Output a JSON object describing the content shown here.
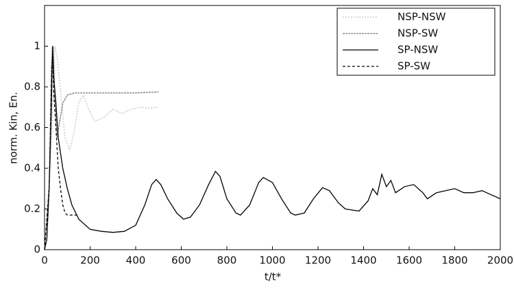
{
  "chart_data": {
    "type": "line",
    "x_label": "t/t*",
    "y_label": "norm. Kin, En.",
    "xlim": [
      0,
      2000
    ],
    "xticks": [
      0,
      200,
      400,
      600,
      800,
      1000,
      1200,
      1400,
      1600,
      1800,
      2000
    ],
    "ylim": [
      0,
      1.2
    ],
    "yticks": [
      0,
      0.2,
      0.4,
      0.6,
      0.8,
      1
    ],
    "legend": "upper right",
    "series": [
      {
        "name": "NSP-NSW",
        "color": "#c4c4c4",
        "dash": "2,2",
        "x": [
          0,
          30,
          45,
          55,
          70,
          90,
          110,
          130,
          150,
          170,
          190,
          220,
          260,
          300,
          340,
          380,
          420,
          460,
          500
        ],
        "values": [
          0,
          0.5,
          1.0,
          0.95,
          0.78,
          0.55,
          0.49,
          0.58,
          0.72,
          0.76,
          0.7,
          0.63,
          0.65,
          0.69,
          0.67,
          0.69,
          0.7,
          0.695,
          0.7
        ]
      },
      {
        "name": "NSP-SW",
        "color": "#777777",
        "dash": "3,1",
        "x": [
          0,
          20,
          30,
          38,
          45,
          55,
          65,
          80,
          100,
          130,
          200,
          300,
          400,
          500
        ],
        "values": [
          0,
          0.3,
          0.9,
          1.0,
          0.75,
          0.55,
          0.62,
          0.72,
          0.76,
          0.77,
          0.77,
          0.77,
          0.77,
          0.775
        ]
      },
      {
        "name": "SP-NSW",
        "color": "#000000",
        "dash": "none",
        "x": [
          0,
          10,
          20,
          30,
          35,
          40,
          50,
          60,
          80,
          100,
          120,
          150,
          200,
          250,
          300,
          350,
          400,
          440,
          470,
          490,
          510,
          540,
          580,
          610,
          640,
          680,
          720,
          750,
          770,
          800,
          840,
          860,
          900,
          940,
          960,
          1000,
          1040,
          1080,
          1100,
          1140,
          1180,
          1220,
          1250,
          1290,
          1320,
          1380,
          1420,
          1440,
          1460,
          1480,
          1500,
          1520,
          1540,
          1580,
          1620,
          1660,
          1680,
          1720,
          1760,
          1800,
          1840,
          1880,
          1920,
          1960,
          2000
        ],
        "values": [
          0,
          0.05,
          0.3,
          0.7,
          1.0,
          0.85,
          0.72,
          0.55,
          0.4,
          0.3,
          0.22,
          0.15,
          0.1,
          0.09,
          0.085,
          0.09,
          0.12,
          0.22,
          0.32,
          0.345,
          0.32,
          0.25,
          0.18,
          0.15,
          0.16,
          0.22,
          0.32,
          0.385,
          0.36,
          0.25,
          0.18,
          0.17,
          0.22,
          0.33,
          0.355,
          0.33,
          0.25,
          0.18,
          0.17,
          0.18,
          0.25,
          0.305,
          0.29,
          0.23,
          0.2,
          0.19,
          0.24,
          0.3,
          0.27,
          0.37,
          0.31,
          0.34,
          0.28,
          0.31,
          0.32,
          0.28,
          0.25,
          0.28,
          0.29,
          0.3,
          0.28,
          0.28,
          0.29,
          0.27,
          0.25
        ]
      },
      {
        "name": "SP-SW",
        "color": "#000000",
        "dash": "4,3",
        "x": [
          0,
          20,
          30,
          35,
          40,
          50,
          60,
          70,
          80,
          90,
          100,
          130,
          150
        ],
        "values": [
          0,
          0.3,
          0.8,
          0.98,
          0.78,
          0.6,
          0.4,
          0.3,
          0.22,
          0.18,
          0.17,
          0.17,
          0.17
        ]
      }
    ]
  }
}
